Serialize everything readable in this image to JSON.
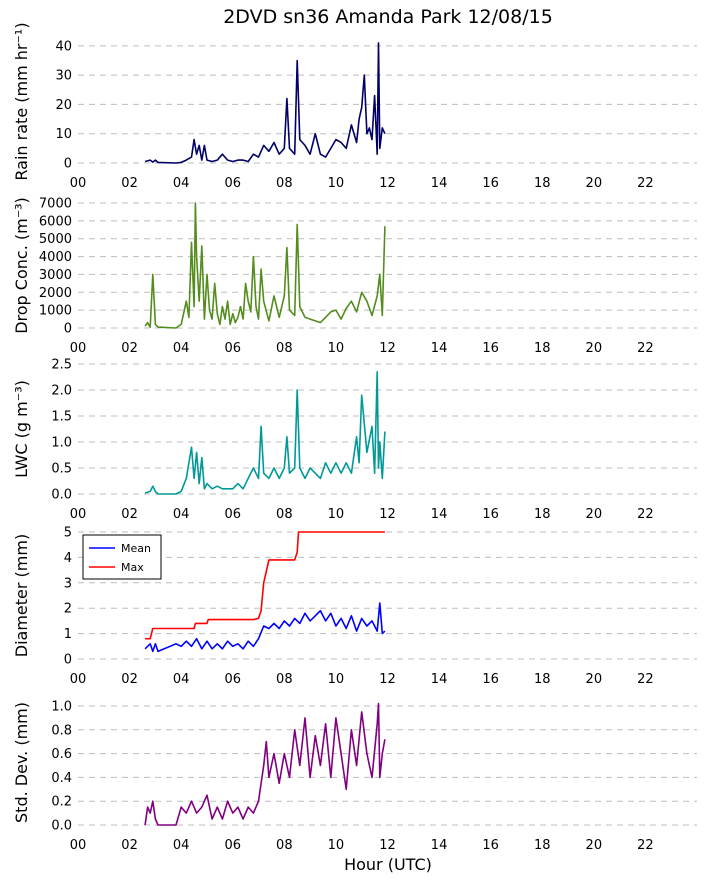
{
  "figure": {
    "title": "2DVD sn36 Amanda Park 12/08/15",
    "xlabel": "Hour (UTC)"
  },
  "chart_data": [
    {
      "type": "line",
      "ylabel": "Rain rate (mm hr⁻¹)",
      "xlim": [
        0,
        24
      ],
      "ylim": [
        0,
        42
      ],
      "yticks": [
        0,
        10,
        20,
        30,
        40
      ],
      "xticks": [
        "00",
        "02",
        "04",
        "06",
        "08",
        "10",
        "12",
        "14",
        "16",
        "18",
        "20",
        "22"
      ],
      "series": [
        {
          "color": "#000066",
          "x": [
            2.6,
            2.8,
            2.9,
            3.0,
            3.1,
            3.8,
            4.0,
            4.2,
            4.4,
            4.5,
            4.6,
            4.7,
            4.8,
            4.9,
            5.0,
            5.2,
            5.4,
            5.6,
            5.8,
            6.0,
            6.2,
            6.4,
            6.6,
            6.8,
            7.0,
            7.2,
            7.4,
            7.6,
            7.8,
            8.0,
            8.1,
            8.2,
            8.4,
            8.5,
            8.6,
            8.8,
            9.0,
            9.2,
            9.4,
            9.6,
            9.8,
            10.0,
            10.2,
            10.4,
            10.6,
            10.8,
            10.9,
            11.0,
            11.1,
            11.2,
            11.3,
            11.4,
            11.5,
            11.6,
            11.65,
            11.7,
            11.8,
            11.9
          ],
          "y": [
            0.5,
            1,
            0.3,
            1,
            0.2,
            0,
            0.2,
            1,
            2,
            8,
            3,
            6,
            1,
            6,
            1,
            0.5,
            1,
            3,
            1,
            0.5,
            1,
            1,
            0.5,
            3,
            2,
            6,
            4,
            7,
            3,
            5,
            22,
            5,
            3,
            35,
            8,
            6,
            3,
            10,
            3,
            2,
            5,
            8,
            7,
            5,
            13,
            7,
            15,
            19,
            30,
            10,
            12,
            8,
            23,
            3,
            41,
            5,
            12,
            10
          ]
        }
      ]
    },
    {
      "type": "line",
      "ylabel": "Drop Conc. (m⁻³)",
      "xlim": [
        0,
        24
      ],
      "ylim": [
        0,
        7000
      ],
      "yticks": [
        0,
        1000,
        2000,
        3000,
        4000,
        5000,
        6000,
        7000
      ],
      "xticks": [
        "00",
        "02",
        "04",
        "06",
        "08",
        "10",
        "12",
        "14",
        "16",
        "18",
        "20",
        "22"
      ],
      "series": [
        {
          "color": "#548c1e",
          "x": [
            2.6,
            2.7,
            2.8,
            2.9,
            3.0,
            3.1,
            3.8,
            4.0,
            4.2,
            4.3,
            4.4,
            4.5,
            4.55,
            4.6,
            4.7,
            4.8,
            4.9,
            5.0,
            5.1,
            5.2,
            5.3,
            5.4,
            5.5,
            5.6,
            5.7,
            5.8,
            5.9,
            6.0,
            6.1,
            6.2,
            6.3,
            6.4,
            6.5,
            6.6,
            6.7,
            6.8,
            6.9,
            7.0,
            7.1,
            7.2,
            7.4,
            7.6,
            7.8,
            7.9,
            8.0,
            8.1,
            8.2,
            8.4,
            8.5,
            8.6,
            8.8,
            9.0,
            9.2,
            9.4,
            9.6,
            9.8,
            10.0,
            10.2,
            10.4,
            10.6,
            10.8,
            11.0,
            11.2,
            11.4,
            11.6,
            11.7,
            11.8,
            11.9
          ],
          "y": [
            100,
            300,
            50,
            3000,
            200,
            50,
            0,
            200,
            1500,
            600,
            4800,
            1200,
            7000,
            4000,
            1500,
            4600,
            500,
            3000,
            1000,
            500,
            2500,
            800,
            200,
            1200,
            500,
            1500,
            200,
            800,
            300,
            600,
            1200,
            500,
            2500,
            1500,
            900,
            4000,
            1200,
            500,
            3300,
            1500,
            400,
            1800,
            600,
            1200,
            1800,
            4500,
            1000,
            700,
            5800,
            1200,
            600,
            500,
            400,
            300,
            600,
            900,
            1000,
            500,
            1100,
            1500,
            900,
            2000,
            1500,
            700,
            1800,
            3000,
            700,
            5700
          ]
        }
      ]
    },
    {
      "type": "line",
      "ylabel": "LWC (g m⁻³)",
      "xlim": [
        0,
        24
      ],
      "ylim": [
        0,
        2.5
      ],
      "yticks": [
        0.0,
        0.5,
        1.0,
        1.5,
        2.0,
        2.5
      ],
      "xticks": [
        "00",
        "02",
        "04",
        "06",
        "08",
        "10",
        "12",
        "14",
        "16",
        "18",
        "20",
        "22"
      ],
      "series": [
        {
          "color": "#009999",
          "x": [
            2.6,
            2.8,
            2.9,
            3.0,
            3.1,
            3.8,
            4.0,
            4.2,
            4.4,
            4.5,
            4.6,
            4.7,
            4.8,
            4.9,
            5.0,
            5.2,
            5.4,
            5.6,
            5.8,
            6.0,
            6.2,
            6.4,
            6.6,
            6.8,
            7.0,
            7.1,
            7.2,
            7.4,
            7.6,
            7.8,
            8.0,
            8.1,
            8.2,
            8.4,
            8.5,
            8.6,
            8.8,
            9.0,
            9.2,
            9.4,
            9.6,
            9.8,
            10.0,
            10.2,
            10.4,
            10.6,
            10.8,
            10.9,
            11.0,
            11.2,
            11.4,
            11.5,
            11.6,
            11.65,
            11.7,
            11.8,
            11.9
          ],
          "y": [
            0.02,
            0.05,
            0.15,
            0.05,
            0,
            0,
            0.05,
            0.3,
            0.9,
            0.3,
            0.8,
            0.2,
            0.7,
            0.1,
            0.2,
            0.1,
            0.15,
            0.1,
            0.1,
            0.1,
            0.2,
            0.1,
            0.3,
            0.5,
            0.3,
            1.3,
            0.4,
            0.3,
            0.5,
            0.3,
            0.5,
            1.1,
            0.4,
            0.5,
            2.0,
            0.5,
            0.3,
            0.5,
            0.4,
            0.3,
            0.6,
            0.4,
            0.6,
            0.4,
            0.6,
            0.4,
            1.1,
            0.6,
            1.9,
            0.8,
            1.3,
            0.4,
            2.35,
            0.5,
            1.0,
            0.3,
            1.2
          ]
        }
      ]
    },
    {
      "type": "line",
      "ylabel": "Diameter (mm)",
      "xlim": [
        0,
        24
      ],
      "ylim": [
        0,
        5
      ],
      "yticks": [
        0,
        1,
        2,
        3,
        4,
        5
      ],
      "xticks": [
        "00",
        "02",
        "04",
        "06",
        "08",
        "10",
        "12",
        "14",
        "16",
        "18",
        "20",
        "22"
      ],
      "legend": {
        "position": "top-left"
      },
      "series": [
        {
          "name": "Mean",
          "color": "#0000ff",
          "x": [
            2.6,
            2.8,
            2.9,
            3.0,
            3.1,
            3.8,
            4.0,
            4.2,
            4.4,
            4.6,
            4.8,
            5.0,
            5.2,
            5.4,
            5.6,
            5.8,
            6.0,
            6.2,
            6.4,
            6.6,
            6.8,
            7.0,
            7.2,
            7.4,
            7.6,
            7.8,
            8.0,
            8.2,
            8.4,
            8.6,
            8.8,
            9.0,
            9.2,
            9.4,
            9.6,
            9.8,
            10.0,
            10.2,
            10.4,
            10.6,
            10.8,
            11.0,
            11.2,
            11.4,
            11.6,
            11.7,
            11.8,
            11.9
          ],
          "y": [
            0.4,
            0.6,
            0.3,
            0.6,
            0.3,
            0.6,
            0.5,
            0.7,
            0.5,
            0.8,
            0.4,
            0.7,
            0.4,
            0.6,
            0.4,
            0.7,
            0.5,
            0.6,
            0.4,
            0.7,
            0.5,
            0.8,
            1.3,
            1.2,
            1.4,
            1.2,
            1.5,
            1.3,
            1.6,
            1.4,
            1.8,
            1.5,
            1.7,
            1.9,
            1.5,
            1.8,
            1.3,
            1.6,
            1.2,
            1.7,
            1.1,
            1.6,
            1.3,
            1.5,
            1.1,
            2.2,
            1.0,
            1.1
          ]
        },
        {
          "name": "Max",
          "color": "#ff0000",
          "x": [
            2.6,
            2.7,
            2.8,
            2.9,
            3.1,
            3.8,
            4.5,
            4.55,
            5.0,
            5.05,
            6.8,
            7.0,
            7.1,
            7.2,
            7.4,
            7.5,
            8.4,
            8.5,
            8.55,
            11.9
          ],
          "y": [
            0.8,
            0.8,
            0.8,
            1.2,
            1.2,
            1.2,
            1.2,
            1.4,
            1.4,
            1.55,
            1.55,
            1.6,
            1.9,
            3.0,
            3.9,
            3.9,
            3.9,
            4.2,
            5.0,
            5.0
          ]
        }
      ]
    },
    {
      "type": "line",
      "ylabel": "Std. Dev. (mm)",
      "xlim": [
        0,
        24
      ],
      "ylim": [
        0,
        1.05
      ],
      "yticks": [
        0.0,
        0.2,
        0.4,
        0.6,
        0.8,
        1.0
      ],
      "xticks": [
        "00",
        "02",
        "04",
        "06",
        "08",
        "10",
        "12",
        "14",
        "16",
        "18",
        "20",
        "22"
      ],
      "series": [
        {
          "color": "#800080",
          "x": [
            2.6,
            2.7,
            2.8,
            2.9,
            3.0,
            3.1,
            3.8,
            4.0,
            4.2,
            4.4,
            4.6,
            4.8,
            5.0,
            5.2,
            5.4,
            5.6,
            5.8,
            6.0,
            6.2,
            6.4,
            6.6,
            6.8,
            7.0,
            7.2,
            7.3,
            7.4,
            7.6,
            7.8,
            8.0,
            8.2,
            8.4,
            8.6,
            8.8,
            9.0,
            9.2,
            9.4,
            9.6,
            9.8,
            10.0,
            10.2,
            10.4,
            10.6,
            10.8,
            11.0,
            11.2,
            11.4,
            11.6,
            11.65,
            11.7,
            11.8,
            11.9
          ],
          "y": [
            0.0,
            0.15,
            0.1,
            0.2,
            0.05,
            0.0,
            0.0,
            0.15,
            0.1,
            0.2,
            0.1,
            0.15,
            0.25,
            0.05,
            0.15,
            0.05,
            0.2,
            0.1,
            0.15,
            0.05,
            0.15,
            0.1,
            0.2,
            0.5,
            0.7,
            0.4,
            0.6,
            0.35,
            0.6,
            0.4,
            0.8,
            0.5,
            0.9,
            0.4,
            0.75,
            0.5,
            0.85,
            0.4,
            0.9,
            0.6,
            0.3,
            0.8,
            0.5,
            0.95,
            0.6,
            0.4,
            0.85,
            1.02,
            0.4,
            0.6,
            0.72
          ]
        }
      ]
    }
  ]
}
